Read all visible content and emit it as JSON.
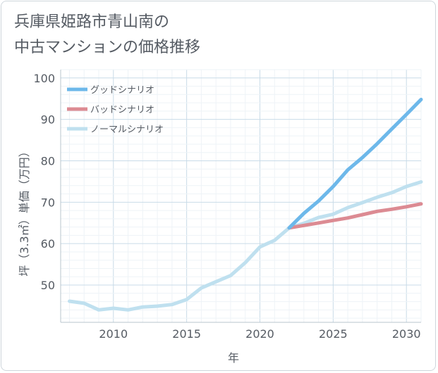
{
  "title_line1": "兵庫県姫路市青山南の",
  "title_line2": "中古マンションの価格推移",
  "chart_data": {
    "type": "line",
    "xlabel": "年",
    "ylabel": "坪（3.3㎡）単価（万円）",
    "xlim": [
      2006.4,
      2031
    ],
    "ylim": [
      41,
      102
    ],
    "xticks": [
      2010,
      2015,
      2020,
      2025,
      2030
    ],
    "yticks": [
      50,
      60,
      70,
      80,
      90,
      100
    ],
    "grid": true,
    "legend_position": "top-left",
    "series": [
      {
        "name": "グッドシナリオ",
        "color": "#6db8ea",
        "x": [
          2022,
          2023,
          2024,
          2025,
          2026,
          2027,
          2028,
          2029,
          2030,
          2031
        ],
        "y": [
          63.8,
          67.3,
          70.3,
          73.8,
          77.8,
          80.8,
          84.1,
          87.7,
          91.2,
          94.8
        ]
      },
      {
        "name": "バッドシナリオ",
        "color": "#dc8b93",
        "x": [
          2022,
          2023,
          2024,
          2025,
          2026,
          2027,
          2028,
          2029,
          2030,
          2031
        ],
        "y": [
          63.8,
          64.4,
          65.0,
          65.6,
          66.2,
          67.0,
          67.8,
          68.3,
          68.9,
          69.6
        ]
      },
      {
        "name": "ノーマルシナリオ",
        "color": "#bfe0ef",
        "x": [
          2007,
          2008,
          2009,
          2010,
          2011,
          2012,
          2013,
          2014,
          2015,
          2016,
          2017,
          2018,
          2019,
          2020,
          2021,
          2022,
          2023,
          2024,
          2025,
          2026,
          2027,
          2028,
          2029,
          2030,
          2031
        ],
        "y": [
          46.1,
          45.6,
          44.0,
          44.4,
          44.0,
          44.7,
          44.9,
          45.3,
          46.5,
          49.3,
          50.8,
          52.3,
          55.4,
          59.2,
          60.8,
          63.8,
          64.9,
          66.3,
          67.1,
          68.7,
          69.9,
          71.2,
          72.3,
          73.8,
          74.9
        ]
      }
    ]
  }
}
